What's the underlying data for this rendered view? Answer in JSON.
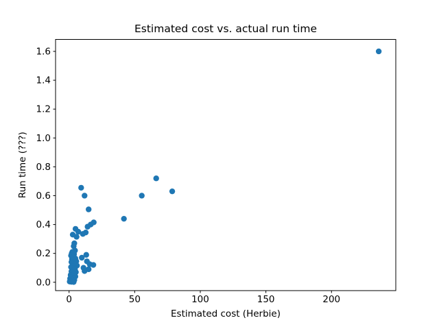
{
  "figure": {
    "background": "#ffffff"
  },
  "chart_data": {
    "type": "scatter",
    "title": "Estimated cost vs. actual run time",
    "xlabel": "Estimated cost (Herbie)",
    "ylabel": "Run time (???)",
    "xlim": [
      -10.3,
      249
    ],
    "ylim": [
      -0.058,
      1.683
    ],
    "xtick_values": [
      0,
      50,
      100,
      150,
      200
    ],
    "xtick_labels": [
      "0",
      "50",
      "100",
      "150",
      "200"
    ],
    "ytick_values": [
      0.0,
      0.2,
      0.4,
      0.6,
      0.8,
      1.0,
      1.2,
      1.4,
      1.6
    ],
    "ytick_labels": [
      "0.0",
      "0.2",
      "0.4",
      "0.6",
      "0.8",
      "1.0",
      "1.2",
      "1.4",
      "1.6"
    ],
    "grid": false,
    "legend_position": "none",
    "axis_color": "#000000",
    "marker": {
      "color": "#1f77b4",
      "radius_px": 4.2
    },
    "points": [
      [
        236,
        1.6
      ],
      [
        66.4,
        0.72
      ],
      [
        78.6,
        0.63
      ],
      [
        55.4,
        0.6
      ],
      [
        41.8,
        0.44
      ],
      [
        9.2,
        0.655
      ],
      [
        11.8,
        0.6
      ],
      [
        14.9,
        0.505
      ],
      [
        18.8,
        0.415
      ],
      [
        16.5,
        0.4
      ],
      [
        14.1,
        0.385
      ],
      [
        12.7,
        0.345
      ],
      [
        10.5,
        0.335
      ],
      [
        7.0,
        0.35
      ],
      [
        5.7,
        0.315
      ],
      [
        4.9,
        0.37
      ],
      [
        2.8,
        0.33
      ],
      [
        4.0,
        0.27
      ],
      [
        3.5,
        0.25
      ],
      [
        4.5,
        0.22
      ],
      [
        2.5,
        0.21
      ],
      [
        13.1,
        0.19
      ],
      [
        9.7,
        0.17
      ],
      [
        13.6,
        0.145
      ],
      [
        15.7,
        0.125
      ],
      [
        18.5,
        0.12
      ],
      [
        11.0,
        0.1
      ],
      [
        14.9,
        0.09
      ],
      [
        11.8,
        0.078
      ],
      [
        2.0,
        0.2
      ],
      [
        3.8,
        0.195
      ],
      [
        1.5,
        0.185
      ],
      [
        3.0,
        0.175
      ],
      [
        4.8,
        0.165
      ],
      [
        2.2,
        0.16
      ],
      [
        3.5,
        0.15
      ],
      [
        5.5,
        0.145
      ],
      [
        1.8,
        0.14
      ],
      [
        2.8,
        0.13
      ],
      [
        4.2,
        0.125
      ],
      [
        6.0,
        0.115
      ],
      [
        3.2,
        0.11
      ],
      [
        1.5,
        0.105
      ],
      [
        2.5,
        0.095
      ],
      [
        4.5,
        0.09
      ],
      [
        3.0,
        0.08
      ],
      [
        1.8,
        0.075
      ],
      [
        5.2,
        0.07
      ],
      [
        2.2,
        0.065
      ],
      [
        3.8,
        0.055
      ],
      [
        1.2,
        0.05
      ],
      [
        2.8,
        0.045
      ],
      [
        4.8,
        0.04
      ],
      [
        1.8,
        0.035
      ],
      [
        3.2,
        0.03
      ],
      [
        0.8,
        0.025
      ],
      [
        2.2,
        0.02
      ],
      [
        4.0,
        0.015
      ],
      [
        1.2,
        0.012
      ],
      [
        2.8,
        0.008
      ],
      [
        0.5,
        0.005
      ],
      [
        1.8,
        0.003
      ],
      [
        3.5,
        0.002
      ]
    ]
  }
}
